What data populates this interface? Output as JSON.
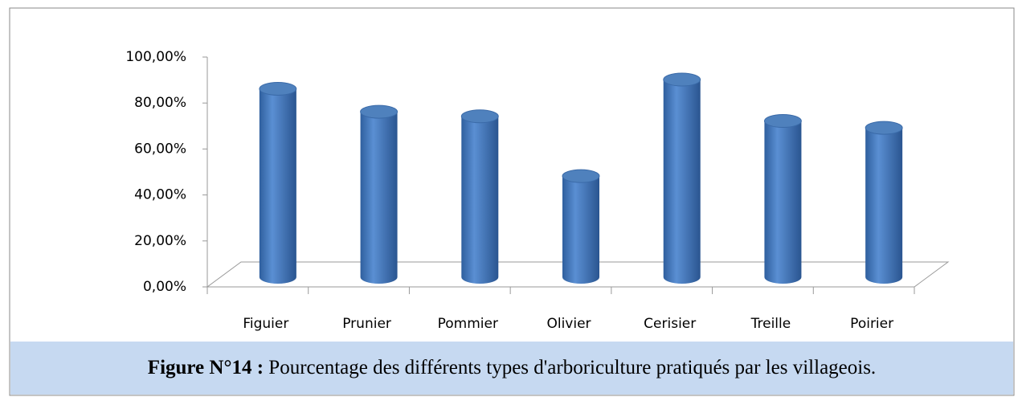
{
  "chart_data": {
    "type": "bar3d",
    "categories": [
      "Figuier",
      "Prunier",
      "Pommier",
      "Olivier",
      "Cerisier",
      "Treille",
      "Poirier"
    ],
    "values": [
      82,
      72,
      70,
      44,
      86,
      68,
      65
    ],
    "color": "#4f81bd",
    "ylim": [
      0,
      100
    ],
    "yticks": [
      {
        "value": 0,
        "label": "0,00%"
      },
      {
        "value": 20,
        "label": "20,00%"
      },
      {
        "value": 40,
        "label": "40,00%"
      },
      {
        "value": 60,
        "label": "60,00%"
      },
      {
        "value": 80,
        "label": "80,00%"
      },
      {
        "value": 100,
        "label": "100,00%"
      }
    ],
    "grid": false,
    "figure_label": "Figure N°14 :",
    "caption": "Pourcentage des différents types d'arboriculture pratiqués par les villageois."
  }
}
